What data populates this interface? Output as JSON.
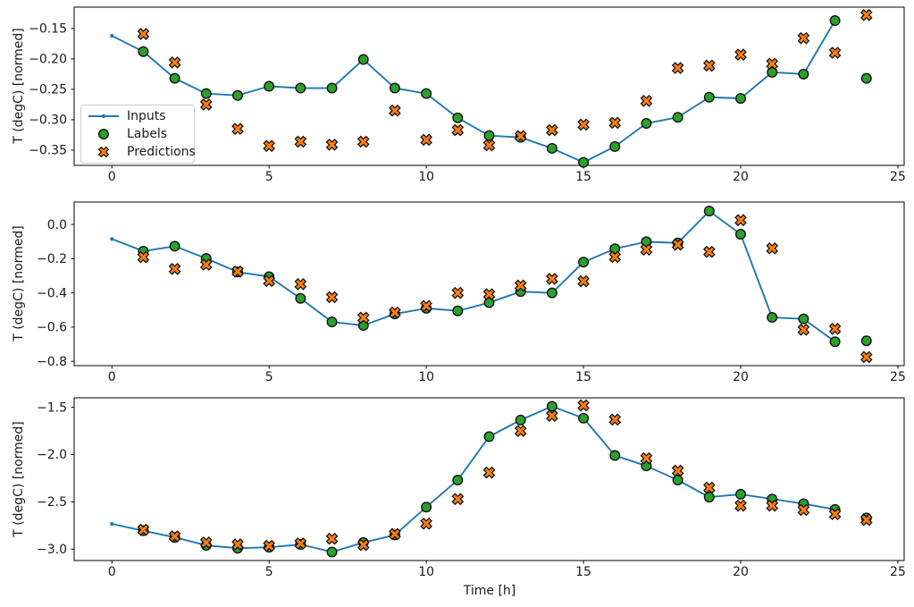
{
  "figure": {
    "xlabel": "Time [h]",
    "ylabel": "T (degC) [normed]",
    "xlim": [
      -1.2,
      25.2
    ],
    "x_ticks": [
      0,
      5,
      10,
      15,
      20,
      25
    ],
    "x_tick_labels": [
      "0",
      "5",
      "10",
      "15",
      "20",
      "25"
    ],
    "colors": {
      "inputs": "#1f77b4",
      "labels": "#2ca02c",
      "predictions": "#ff7f0e",
      "marker_edge": "#141414",
      "axis": "#000000",
      "text": "#1a1a1a"
    },
    "legend": {
      "position": "upper left",
      "items": [
        {
          "label": "Inputs",
          "marker": "line-dot",
          "series": "inputs"
        },
        {
          "label": "Labels",
          "marker": "circle",
          "series": "labels"
        },
        {
          "label": "Predictions",
          "marker": "x",
          "series": "predictions"
        }
      ]
    }
  },
  "chart_data": [
    {
      "type": "line",
      "title": "",
      "ylabel": "T (degC) [normed]",
      "ylim": [
        -0.375,
        -0.115
      ],
      "yticks": [
        -0.15,
        -0.2,
        -0.25,
        -0.3,
        -0.35
      ],
      "ytick_labels": [
        "−0.15",
        "−0.20",
        "−0.25",
        "−0.30",
        "−0.35"
      ],
      "series": {
        "inputs": {
          "x": [
            0,
            1,
            2,
            3,
            4,
            5,
            6,
            7,
            8,
            9,
            10,
            11,
            12,
            13,
            14,
            15,
            16,
            17,
            18,
            19,
            20,
            21,
            22,
            23
          ],
          "y": [
            -0.162,
            -0.188,
            -0.232,
            -0.257,
            -0.26,
            -0.245,
            -0.248,
            -0.248,
            -0.201,
            -0.248,
            -0.257,
            -0.297,
            -0.326,
            -0.329,
            -0.347,
            -0.37,
            -0.344,
            -0.306,
            -0.296,
            -0.263,
            -0.265,
            -0.222,
            -0.225,
            -0.137
          ]
        },
        "labels": {
          "x": [
            1,
            2,
            3,
            4,
            5,
            6,
            7,
            8,
            9,
            10,
            11,
            12,
            13,
            14,
            15,
            16,
            17,
            18,
            19,
            20,
            21,
            22,
            23,
            24
          ],
          "y": [
            -0.188,
            -0.232,
            -0.257,
            -0.26,
            -0.245,
            -0.248,
            -0.248,
            -0.201,
            -0.248,
            -0.257,
            -0.297,
            -0.326,
            -0.329,
            -0.347,
            -0.37,
            -0.344,
            -0.306,
            -0.296,
            -0.263,
            -0.265,
            -0.222,
            -0.225,
            -0.137,
            -0.232
          ]
        },
        "predictions": {
          "x": [
            1,
            2,
            3,
            4,
            5,
            6,
            7,
            8,
            9,
            10,
            11,
            12,
            13,
            14,
            15,
            16,
            17,
            18,
            19,
            20,
            21,
            22,
            23,
            24
          ],
          "y": [
            -0.159,
            -0.206,
            -0.275,
            -0.315,
            -0.343,
            -0.336,
            -0.341,
            -0.336,
            -0.285,
            -0.333,
            -0.317,
            -0.342,
            -0.327,
            -0.317,
            -0.308,
            -0.305,
            -0.269,
            -0.215,
            -0.211,
            -0.193,
            -0.208,
            -0.166,
            -0.19,
            -0.128
          ]
        }
      }
    },
    {
      "type": "line",
      "title": "",
      "ylabel": "T (degC) [normed]",
      "ylim": [
        -0.825,
        0.131
      ],
      "yticks": [
        0.0,
        -0.2,
        -0.4,
        -0.6,
        -0.8
      ],
      "ytick_labels": [
        "0.0",
        "−0.2",
        "−0.4",
        "−0.6",
        "−0.8"
      ],
      "series": {
        "inputs": {
          "x": [
            0,
            1,
            2,
            3,
            4,
            5,
            6,
            7,
            8,
            9,
            10,
            11,
            12,
            13,
            14,
            15,
            16,
            17,
            18,
            19,
            20,
            21,
            22,
            23
          ],
          "y": [
            -0.085,
            -0.156,
            -0.127,
            -0.199,
            -0.278,
            -0.305,
            -0.432,
            -0.57,
            -0.59,
            -0.523,
            -0.49,
            -0.505,
            -0.457,
            -0.392,
            -0.4,
            -0.22,
            -0.142,
            -0.101,
            -0.108,
            0.078,
            -0.057,
            -0.543,
            -0.552,
            -0.685
          ]
        },
        "labels": {
          "x": [
            1,
            2,
            3,
            4,
            5,
            6,
            7,
            8,
            9,
            10,
            11,
            12,
            13,
            14,
            15,
            16,
            17,
            18,
            19,
            20,
            21,
            22,
            23,
            24
          ],
          "y": [
            -0.156,
            -0.127,
            -0.199,
            -0.278,
            -0.305,
            -0.432,
            -0.57,
            -0.59,
            -0.523,
            -0.49,
            -0.505,
            -0.457,
            -0.392,
            -0.4,
            -0.22,
            -0.142,
            -0.101,
            -0.108,
            0.078,
            -0.057,
            -0.543,
            -0.552,
            -0.685,
            -0.68
          ]
        },
        "predictions": {
          "x": [
            1,
            2,
            3,
            4,
            5,
            6,
            7,
            8,
            9,
            10,
            11,
            12,
            13,
            14,
            15,
            16,
            17,
            18,
            19,
            20,
            21,
            22,
            23,
            24
          ],
          "y": [
            -0.191,
            -0.26,
            -0.235,
            -0.275,
            -0.33,
            -0.349,
            -0.425,
            -0.545,
            -0.515,
            -0.477,
            -0.4,
            -0.408,
            -0.357,
            -0.318,
            -0.332,
            -0.19,
            -0.147,
            -0.118,
            -0.16,
            0.025,
            -0.14,
            -0.615,
            -0.61,
            -0.775
          ]
        }
      }
    },
    {
      "type": "line",
      "title": "",
      "ylabel": "T (degC) [normed]",
      "xlabel": "Time [h]",
      "ylim": [
        -3.12,
        -1.4
      ],
      "yticks": [
        -1.5,
        -2.0,
        -2.5,
        -3.0
      ],
      "ytick_labels": [
        "−1.5",
        "−2.0",
        "−2.5",
        "−3.0"
      ],
      "series": {
        "inputs": {
          "x": [
            0,
            1,
            2,
            3,
            4,
            5,
            6,
            7,
            8,
            9,
            10,
            11,
            12,
            13,
            14,
            15,
            16,
            17,
            18,
            19,
            20,
            21,
            22,
            23
          ],
          "y": [
            -2.733,
            -2.805,
            -2.875,
            -2.96,
            -2.99,
            -2.98,
            -2.95,
            -3.03,
            -2.93,
            -2.85,
            -2.555,
            -2.27,
            -1.81,
            -1.635,
            -1.49,
            -1.615,
            -2.01,
            -2.12,
            -2.27,
            -2.45,
            -2.42,
            -2.47,
            -2.52,
            -2.58
          ]
        },
        "labels": {
          "x": [
            1,
            2,
            3,
            4,
            5,
            6,
            7,
            8,
            9,
            10,
            11,
            12,
            13,
            14,
            15,
            16,
            17,
            18,
            19,
            20,
            21,
            22,
            23,
            24
          ],
          "y": [
            -2.805,
            -2.875,
            -2.96,
            -2.99,
            -2.98,
            -2.95,
            -3.03,
            -2.93,
            -2.85,
            -2.555,
            -2.27,
            -1.81,
            -1.635,
            -1.49,
            -1.615,
            -2.01,
            -2.12,
            -2.27,
            -2.45,
            -2.42,
            -2.47,
            -2.52,
            -2.58,
            -2.67
          ]
        },
        "predictions": {
          "x": [
            1,
            2,
            3,
            4,
            5,
            6,
            7,
            8,
            9,
            10,
            11,
            12,
            13,
            14,
            15,
            16,
            17,
            18,
            19,
            20,
            21,
            22,
            23,
            24
          ],
          "y": [
            -2.795,
            -2.865,
            -2.93,
            -2.95,
            -2.965,
            -2.94,
            -2.89,
            -2.955,
            -2.84,
            -2.73,
            -2.47,
            -2.19,
            -1.75,
            -1.59,
            -1.48,
            -1.63,
            -2.04,
            -2.17,
            -2.35,
            -2.54,
            -2.54,
            -2.585,
            -2.63,
            -2.69
          ]
        }
      }
    }
  ]
}
